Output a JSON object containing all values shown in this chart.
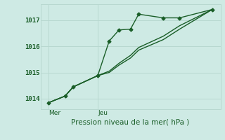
{
  "background_color": "#ceeae4",
  "grid_color": "#b8d8d0",
  "line_color": "#1a5e28",
  "yticks": [
    1014,
    1015,
    1016,
    1017
  ],
  "ylim": [
    1013.6,
    1017.6
  ],
  "xlim": [
    0,
    11.0
  ],
  "xlabel": "Pression niveau de la mer( hPa )",
  "x_tick_positions": [
    0.5,
    3.5
  ],
  "x_tick_labels": [
    "Mer",
    "Jeu"
  ],
  "vline_x": [
    0.5,
    3.5
  ],
  "series1_x": [
    0.5,
    1.5,
    2.0,
    3.5,
    4.2,
    4.8,
    5.5,
    6.0,
    7.5,
    8.5,
    10.5
  ],
  "series1_y": [
    1013.85,
    1014.1,
    1014.45,
    1014.88,
    1016.2,
    1016.62,
    1016.65,
    1017.22,
    1017.08,
    1017.08,
    1017.4
  ],
  "series2_x": [
    0.5,
    1.5,
    2.0,
    3.5,
    4.2,
    4.8,
    5.5,
    6.0,
    7.5,
    8.5,
    10.5
  ],
  "series2_y": [
    1013.85,
    1014.1,
    1014.45,
    1014.88,
    1015.0,
    1015.28,
    1015.55,
    1015.85,
    1016.25,
    1016.65,
    1017.4
  ],
  "series3_x": [
    0.5,
    1.5,
    2.0,
    3.5,
    4.2,
    4.8,
    5.5,
    6.0,
    7.5,
    8.5,
    10.5
  ],
  "series3_y": [
    1013.85,
    1014.1,
    1014.45,
    1014.88,
    1015.05,
    1015.35,
    1015.65,
    1015.95,
    1016.38,
    1016.78,
    1017.4
  ],
  "marker_x": [
    0.5,
    1.5,
    2.0,
    3.5,
    4.2,
    4.8,
    5.5,
    6.0,
    7.5,
    8.5,
    10.5
  ],
  "marker_y": [
    1013.85,
    1014.1,
    1014.45,
    1014.88,
    1016.2,
    1016.62,
    1016.65,
    1017.22,
    1017.08,
    1017.08,
    1017.4
  ]
}
